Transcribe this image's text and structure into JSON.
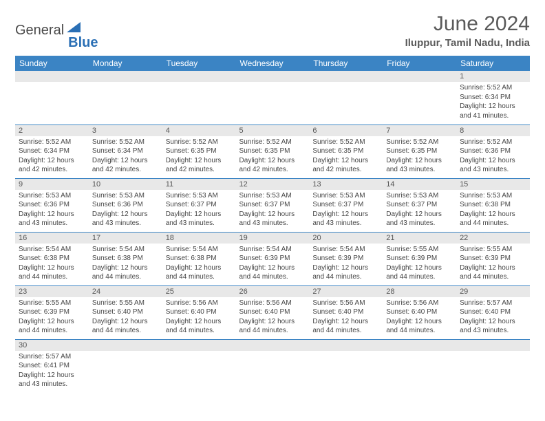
{
  "logo": {
    "word1": "General",
    "word2": "Blue"
  },
  "header": {
    "title": "June 2024",
    "location": "Iluppur, Tamil Nadu, India"
  },
  "colors": {
    "header_bg": "#3b84c4",
    "header_text": "#ffffff",
    "daynum_bg": "#e8e8e8",
    "rule": "#3b84c4",
    "title_text": "#5a5a5a",
    "body_text": "#444444"
  },
  "weekdays": [
    "Sunday",
    "Monday",
    "Tuesday",
    "Wednesday",
    "Thursday",
    "Friday",
    "Saturday"
  ],
  "weeks": [
    [
      null,
      null,
      null,
      null,
      null,
      null,
      {
        "n": "1",
        "l1": "Sunrise: 5:52 AM",
        "l2": "Sunset: 6:34 PM",
        "l3": "Daylight: 12 hours",
        "l4": "and 41 minutes."
      }
    ],
    [
      {
        "n": "2",
        "l1": "Sunrise: 5:52 AM",
        "l2": "Sunset: 6:34 PM",
        "l3": "Daylight: 12 hours",
        "l4": "and 42 minutes."
      },
      {
        "n": "3",
        "l1": "Sunrise: 5:52 AM",
        "l2": "Sunset: 6:34 PM",
        "l3": "Daylight: 12 hours",
        "l4": "and 42 minutes."
      },
      {
        "n": "4",
        "l1": "Sunrise: 5:52 AM",
        "l2": "Sunset: 6:35 PM",
        "l3": "Daylight: 12 hours",
        "l4": "and 42 minutes."
      },
      {
        "n": "5",
        "l1": "Sunrise: 5:52 AM",
        "l2": "Sunset: 6:35 PM",
        "l3": "Daylight: 12 hours",
        "l4": "and 42 minutes."
      },
      {
        "n": "6",
        "l1": "Sunrise: 5:52 AM",
        "l2": "Sunset: 6:35 PM",
        "l3": "Daylight: 12 hours",
        "l4": "and 42 minutes."
      },
      {
        "n": "7",
        "l1": "Sunrise: 5:52 AM",
        "l2": "Sunset: 6:35 PM",
        "l3": "Daylight: 12 hours",
        "l4": "and 43 minutes."
      },
      {
        "n": "8",
        "l1": "Sunrise: 5:52 AM",
        "l2": "Sunset: 6:36 PM",
        "l3": "Daylight: 12 hours",
        "l4": "and 43 minutes."
      }
    ],
    [
      {
        "n": "9",
        "l1": "Sunrise: 5:53 AM",
        "l2": "Sunset: 6:36 PM",
        "l3": "Daylight: 12 hours",
        "l4": "and 43 minutes."
      },
      {
        "n": "10",
        "l1": "Sunrise: 5:53 AM",
        "l2": "Sunset: 6:36 PM",
        "l3": "Daylight: 12 hours",
        "l4": "and 43 minutes."
      },
      {
        "n": "11",
        "l1": "Sunrise: 5:53 AM",
        "l2": "Sunset: 6:37 PM",
        "l3": "Daylight: 12 hours",
        "l4": "and 43 minutes."
      },
      {
        "n": "12",
        "l1": "Sunrise: 5:53 AM",
        "l2": "Sunset: 6:37 PM",
        "l3": "Daylight: 12 hours",
        "l4": "and 43 minutes."
      },
      {
        "n": "13",
        "l1": "Sunrise: 5:53 AM",
        "l2": "Sunset: 6:37 PM",
        "l3": "Daylight: 12 hours",
        "l4": "and 43 minutes."
      },
      {
        "n": "14",
        "l1": "Sunrise: 5:53 AM",
        "l2": "Sunset: 6:37 PM",
        "l3": "Daylight: 12 hours",
        "l4": "and 43 minutes."
      },
      {
        "n": "15",
        "l1": "Sunrise: 5:53 AM",
        "l2": "Sunset: 6:38 PM",
        "l3": "Daylight: 12 hours",
        "l4": "and 44 minutes."
      }
    ],
    [
      {
        "n": "16",
        "l1": "Sunrise: 5:54 AM",
        "l2": "Sunset: 6:38 PM",
        "l3": "Daylight: 12 hours",
        "l4": "and 44 minutes."
      },
      {
        "n": "17",
        "l1": "Sunrise: 5:54 AM",
        "l2": "Sunset: 6:38 PM",
        "l3": "Daylight: 12 hours",
        "l4": "and 44 minutes."
      },
      {
        "n": "18",
        "l1": "Sunrise: 5:54 AM",
        "l2": "Sunset: 6:38 PM",
        "l3": "Daylight: 12 hours",
        "l4": "and 44 minutes."
      },
      {
        "n": "19",
        "l1": "Sunrise: 5:54 AM",
        "l2": "Sunset: 6:39 PM",
        "l3": "Daylight: 12 hours",
        "l4": "and 44 minutes."
      },
      {
        "n": "20",
        "l1": "Sunrise: 5:54 AM",
        "l2": "Sunset: 6:39 PM",
        "l3": "Daylight: 12 hours",
        "l4": "and 44 minutes."
      },
      {
        "n": "21",
        "l1": "Sunrise: 5:55 AM",
        "l2": "Sunset: 6:39 PM",
        "l3": "Daylight: 12 hours",
        "l4": "and 44 minutes."
      },
      {
        "n": "22",
        "l1": "Sunrise: 5:55 AM",
        "l2": "Sunset: 6:39 PM",
        "l3": "Daylight: 12 hours",
        "l4": "and 44 minutes."
      }
    ],
    [
      {
        "n": "23",
        "l1": "Sunrise: 5:55 AM",
        "l2": "Sunset: 6:39 PM",
        "l3": "Daylight: 12 hours",
        "l4": "and 44 minutes."
      },
      {
        "n": "24",
        "l1": "Sunrise: 5:55 AM",
        "l2": "Sunset: 6:40 PM",
        "l3": "Daylight: 12 hours",
        "l4": "and 44 minutes."
      },
      {
        "n": "25",
        "l1": "Sunrise: 5:56 AM",
        "l2": "Sunset: 6:40 PM",
        "l3": "Daylight: 12 hours",
        "l4": "and 44 minutes."
      },
      {
        "n": "26",
        "l1": "Sunrise: 5:56 AM",
        "l2": "Sunset: 6:40 PM",
        "l3": "Daylight: 12 hours",
        "l4": "and 44 minutes."
      },
      {
        "n": "27",
        "l1": "Sunrise: 5:56 AM",
        "l2": "Sunset: 6:40 PM",
        "l3": "Daylight: 12 hours",
        "l4": "and 44 minutes."
      },
      {
        "n": "28",
        "l1": "Sunrise: 5:56 AM",
        "l2": "Sunset: 6:40 PM",
        "l3": "Daylight: 12 hours",
        "l4": "and 44 minutes."
      },
      {
        "n": "29",
        "l1": "Sunrise: 5:57 AM",
        "l2": "Sunset: 6:40 PM",
        "l3": "Daylight: 12 hours",
        "l4": "and 43 minutes."
      }
    ],
    [
      {
        "n": "30",
        "l1": "Sunrise: 5:57 AM",
        "l2": "Sunset: 6:41 PM",
        "l3": "Daylight: 12 hours",
        "l4": "and 43 minutes."
      },
      null,
      null,
      null,
      null,
      null,
      null
    ]
  ]
}
